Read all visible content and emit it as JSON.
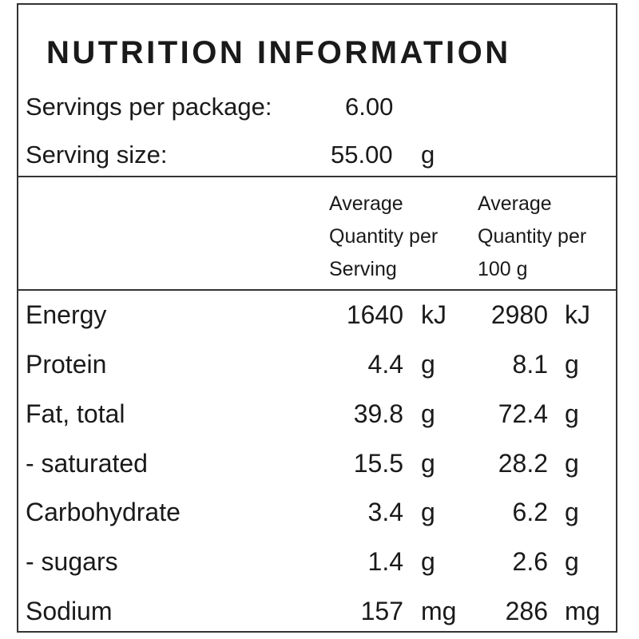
{
  "title": "NUTRITION INFORMATION",
  "servings_per_package": {
    "label": "Servings per package:",
    "value": "6.00"
  },
  "serving_size": {
    "label": "Serving size:",
    "value": "55.00",
    "unit": "g"
  },
  "columns": {
    "per_serving": [
      "Average",
      "Quantity per",
      "Serving"
    ],
    "per_100g": [
      "Average",
      "Quantity per",
      "100 g"
    ]
  },
  "nutrients": [
    {
      "name": "Energy",
      "per_serving": "1640",
      "per_serving_unit": "kJ",
      "per_100g": "2980",
      "per_100g_unit": "kJ"
    },
    {
      "name": "Protein",
      "per_serving": "4.4",
      "per_serving_unit": "g",
      "per_100g": "8.1",
      "per_100g_unit": "g"
    },
    {
      "name": "Fat, total",
      "per_serving": "39.8",
      "per_serving_unit": "g",
      "per_100g": "72.4",
      "per_100g_unit": "g"
    },
    {
      "name": "- saturated",
      "per_serving": "15.5",
      "per_serving_unit": "g",
      "per_100g": "28.2",
      "per_100g_unit": "g"
    },
    {
      "name": "Carbohydrate",
      "per_serving": "3.4",
      "per_serving_unit": "g",
      "per_100g": "6.2",
      "per_100g_unit": "g"
    },
    {
      "name": "- sugars",
      "per_serving": "1.4",
      "per_serving_unit": "g",
      "per_100g": "2.6",
      "per_100g_unit": "g"
    },
    {
      "name": "Sodium",
      "per_serving": "157",
      "per_serving_unit": "mg",
      "per_100g": "286",
      "per_100g_unit": "mg"
    }
  ]
}
